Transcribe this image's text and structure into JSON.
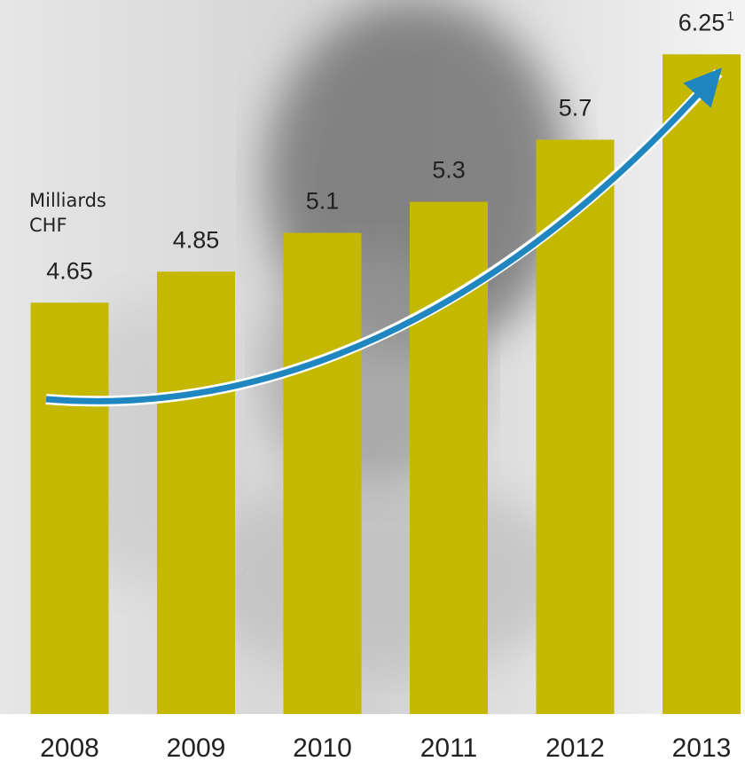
{
  "chart_data": {
    "type": "bar",
    "y_label": "Milliards CHF",
    "categories": [
      "2008",
      "2009",
      "2010",
      "2011",
      "2012",
      "2013"
    ],
    "values": [
      4.65,
      4.85,
      5.1,
      5.3,
      5.7,
      6.25
    ],
    "color": "#c4b800",
    "ylim": [
      2,
      6.6
    ],
    "annotations": [
      {
        "text": "1",
        "category": "2013"
      }
    ]
  }
}
